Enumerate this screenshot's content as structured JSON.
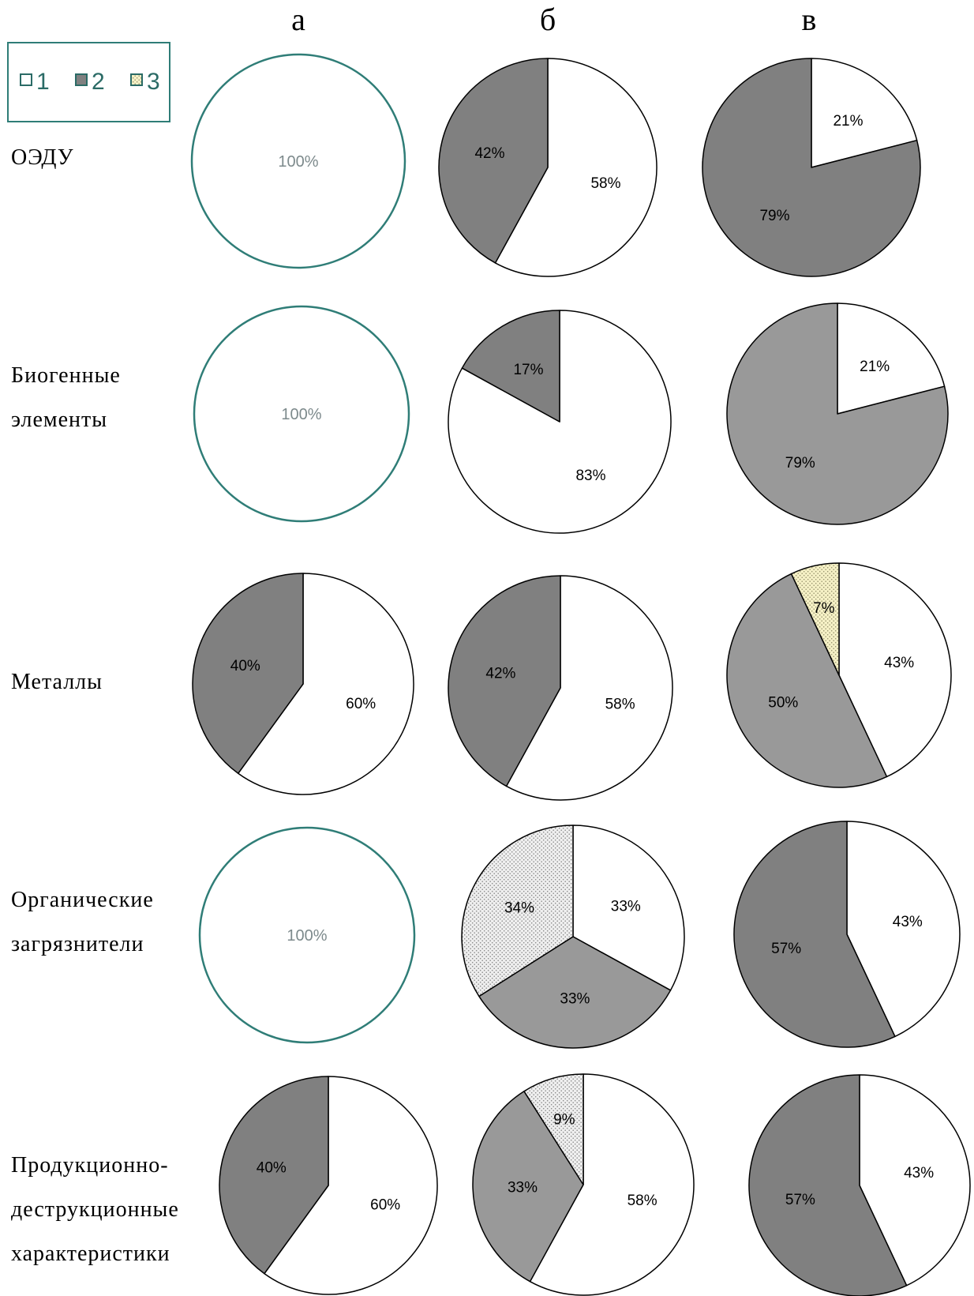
{
  "colors": {
    "1": "#ffffff",
    "2": "#808080",
    "2_light": "#999999",
    "3_yellow": "#f5f0c4",
    "3_gray": "#e6e6e6",
    "full_outline": "#2f7d77"
  },
  "legend": {
    "items": [
      {
        "label": "1",
        "pattern": "white"
      },
      {
        "label": "2",
        "pattern": "gray"
      },
      {
        "label": "3",
        "pattern": "dots"
      }
    ]
  },
  "columns": [
    "а",
    "б",
    "в"
  ],
  "rows": [
    {
      "label_lines": [
        "ОЭДУ"
      ]
    },
    {
      "label_lines": [
        "Биогенные",
        "элементы"
      ]
    },
    {
      "label_lines": [
        "Металлы"
      ]
    },
    {
      "label_lines": [
        "Органические",
        "загрязнители"
      ]
    },
    {
      "label_lines": [
        "Продукционно-",
        "деструкционные",
        "характеристики"
      ]
    }
  ],
  "chart_data": [
    {
      "type": "pie",
      "row": "ОЭДУ",
      "column": "а",
      "slices": [
        {
          "category": "1",
          "value": 100,
          "label": "100%"
        }
      ]
    },
    {
      "type": "pie",
      "row": "ОЭДУ",
      "column": "б",
      "slices": [
        {
          "category": "1",
          "value": 58,
          "label": "58%"
        },
        {
          "category": "2",
          "value": 42,
          "label": "42%"
        }
      ]
    },
    {
      "type": "pie",
      "row": "ОЭДУ",
      "column": "в",
      "slices": [
        {
          "category": "1",
          "value": 21,
          "label": "21%"
        },
        {
          "category": "2",
          "value": 79,
          "label": "79%"
        }
      ]
    },
    {
      "type": "pie",
      "row": "Биогенные элементы",
      "column": "а",
      "slices": [
        {
          "category": "1",
          "value": 100,
          "label": "100%"
        }
      ]
    },
    {
      "type": "pie",
      "row": "Биогенные элементы",
      "column": "б",
      "slices": [
        {
          "category": "1",
          "value": 83,
          "label": "83%"
        },
        {
          "category": "2",
          "value": 17,
          "label": "17%"
        }
      ]
    },
    {
      "type": "pie",
      "row": "Биогенные элементы",
      "column": "в",
      "slices": [
        {
          "category": "1",
          "value": 21,
          "label": "21%"
        },
        {
          "category": "2",
          "value": 79,
          "label": "79%",
          "shade": "light"
        }
      ]
    },
    {
      "type": "pie",
      "row": "Металлы",
      "column": "а",
      "slices": [
        {
          "category": "1",
          "value": 60,
          "label": "60%"
        },
        {
          "category": "2",
          "value": 40,
          "label": "40%"
        }
      ]
    },
    {
      "type": "pie",
      "row": "Металлы",
      "column": "б",
      "slices": [
        {
          "category": "1",
          "value": 58,
          "label": "58%"
        },
        {
          "category": "2",
          "value": 42,
          "label": "42%"
        }
      ]
    },
    {
      "type": "pie",
      "row": "Металлы",
      "column": "в",
      "slices": [
        {
          "category": "1",
          "value": 43,
          "label": "43%"
        },
        {
          "category": "2",
          "value": 50,
          "label": "50%",
          "shade": "light"
        },
        {
          "category": "3",
          "value": 7,
          "label": "7%",
          "shade": "yellow"
        }
      ]
    },
    {
      "type": "pie",
      "row": "Органические загрязнители",
      "column": "а",
      "slices": [
        {
          "category": "1",
          "value": 100,
          "label": "100%"
        }
      ]
    },
    {
      "type": "pie",
      "row": "Органические загрязнители",
      "column": "б",
      "slices": [
        {
          "category": "1",
          "value": 33,
          "label": "33%"
        },
        {
          "category": "2",
          "value": 33,
          "label": "33%",
          "shade": "light"
        },
        {
          "category": "3",
          "value": 34,
          "label": "34%"
        }
      ]
    },
    {
      "type": "pie",
      "row": "Органические загрязнители",
      "column": "в",
      "slices": [
        {
          "category": "1",
          "value": 43,
          "label": "43%"
        },
        {
          "category": "2",
          "value": 57,
          "label": "57%"
        }
      ]
    },
    {
      "type": "pie",
      "row": "Продукционно-деструкционные характеристики",
      "column": "а",
      "slices": [
        {
          "category": "1",
          "value": 60,
          "label": "60%"
        },
        {
          "category": "2",
          "value": 40,
          "label": "40%"
        }
      ]
    },
    {
      "type": "pie",
      "row": "Продукционно-деструкционные характеристики",
      "column": "б",
      "slices": [
        {
          "category": "1",
          "value": 58,
          "label": "58%"
        },
        {
          "category": "2",
          "value": 33,
          "label": "33%",
          "shade": "light"
        },
        {
          "category": "3",
          "value": 9,
          "label": "9%"
        }
      ]
    },
    {
      "type": "pie",
      "row": "Продукционно-деструкционные характеристики",
      "column": "в",
      "slices": [
        {
          "category": "1",
          "value": 43,
          "label": "43%"
        },
        {
          "category": "2",
          "value": 57,
          "label": "57%"
        }
      ]
    }
  ]
}
